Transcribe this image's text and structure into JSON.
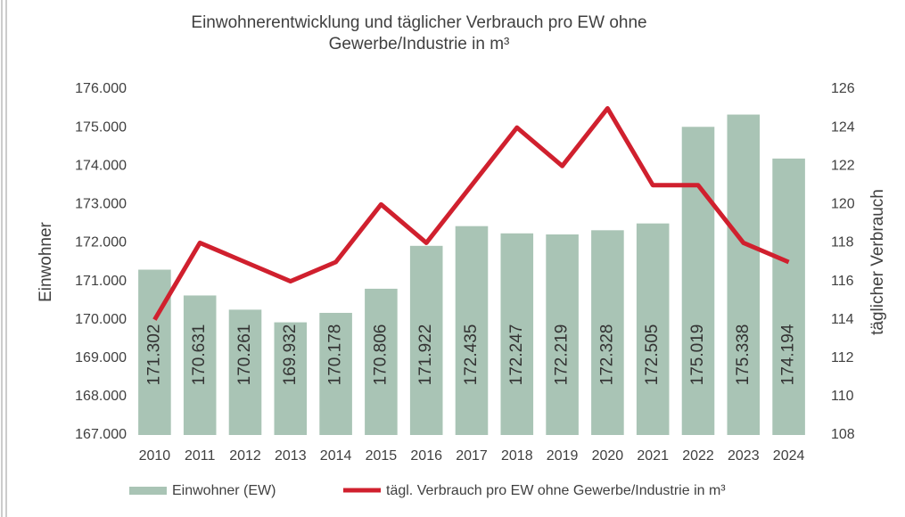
{
  "chart_data": {
    "type": "bar-line",
    "title": [
      "Einwohnerentwicklung und täglicher Verbrauch pro EW ohne",
      "Gewerbe/Industrie in m³"
    ],
    "y_label": "Einwohner",
    "y2_label": "täglicher Verbrauch",
    "categories": [
      "2010",
      "2011",
      "2012",
      "2013",
      "2014",
      "2015",
      "2016",
      "2017",
      "2018",
      "2019",
      "2020",
      "2021",
      "2022",
      "2023",
      "2024"
    ],
    "series": [
      {
        "name": "Einwohner (EW)",
        "type": "bar",
        "color": "#a9c4b5",
        "values": [
          171302,
          170631,
          170261,
          169932,
          170178,
          170806,
          171922,
          172435,
          172247,
          172219,
          172328,
          172505,
          175019,
          175338,
          174194
        ],
        "value_labels": [
          "171.302",
          "170.631",
          "170.261",
          "169.932",
          "170.178",
          "170.806",
          "171.922",
          "172.435",
          "172.247",
          "172.219",
          "172.328",
          "172.505",
          "175.019",
          "175.338",
          "174.194"
        ]
      },
      {
        "name": "tägl. Verbrauch pro EW ohne Gewerbe/Industrie in m³",
        "type": "line",
        "axis": "y2",
        "color": "#d0202e",
        "values": [
          114,
          118,
          117,
          116,
          117,
          120,
          118,
          121,
          124,
          122,
          125,
          121,
          121,
          118,
          117
        ]
      }
    ],
    "ylim": [
      167000,
      176000
    ],
    "yticks": [
      {
        "value": 167000,
        "label": "167.000"
      },
      {
        "value": 168000,
        "label": "168.000"
      },
      {
        "value": 169000,
        "label": "169.000"
      },
      {
        "value": 170000,
        "label": "170.000"
      },
      {
        "value": 171000,
        "label": "171.000"
      },
      {
        "value": 172000,
        "label": "172.000"
      },
      {
        "value": 173000,
        "label": "173.000"
      },
      {
        "value": 174000,
        "label": "174.000"
      },
      {
        "value": 175000,
        "label": "175.000"
      },
      {
        "value": 176000,
        "label": "176.000"
      }
    ],
    "y2lim": [
      108,
      126
    ],
    "y2ticks": [
      108,
      110,
      112,
      114,
      116,
      118,
      120,
      122,
      124,
      126
    ],
    "grid": false,
    "legend": "bottom"
  }
}
